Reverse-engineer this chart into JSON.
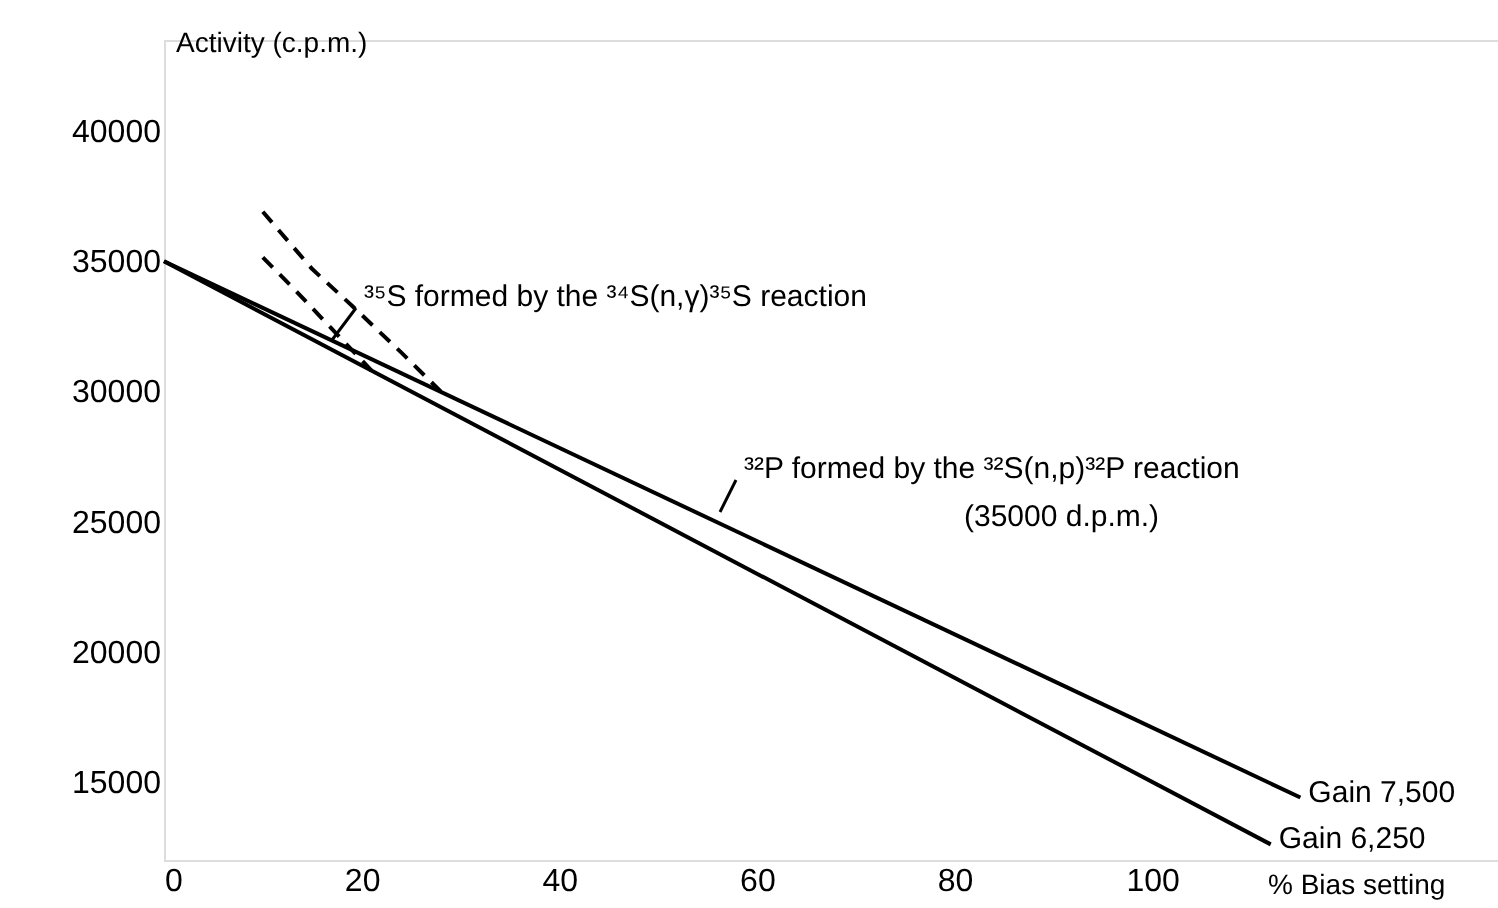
{
  "chart_data": {
    "type": "line",
    "xlabel": "% Bias setting",
    "ylabel": "Activity (c.p.m.)",
    "xlim": [
      0,
      135
    ],
    "ylim": [
      12000,
      43500
    ],
    "xticks": [
      0,
      20,
      40,
      60,
      80,
      100
    ],
    "yticks": [
      15000,
      20000,
      25000,
      30000,
      35000,
      40000
    ],
    "grid": false,
    "marker": "none",
    "series": [
      {
        "name": "Gain 7,500",
        "color": "#000000",
        "x": [
          0,
          115
        ],
        "values": [
          35000,
          14400
        ],
        "line_style": "solid"
      },
      {
        "name": "Gain 6,250",
        "color": "#000000",
        "x": [
          0,
          112
        ],
        "values": [
          35000,
          12600
        ],
        "line_style": "solid"
      },
      {
        "color": "#000000",
        "x": [
          10,
          15,
          19,
          24,
          28
        ],
        "values": [
          36900,
          34700,
          33300,
          31500,
          30000
        ],
        "line_style": "dashed"
      },
      {
        "color": "#000000",
        "x": [
          10,
          13,
          16,
          19,
          21
        ],
        "values": [
          35150,
          34000,
          32800,
          31600,
          30800
        ],
        "line_style": "dashed"
      }
    ],
    "annotations": [
      "³⁵S formed by the ³⁴S(n,γ)³⁵S reaction",
      "³²P formed by the ³²S(n,p)³²P reaction",
      "(35000 d.p.m.)"
    ]
  }
}
